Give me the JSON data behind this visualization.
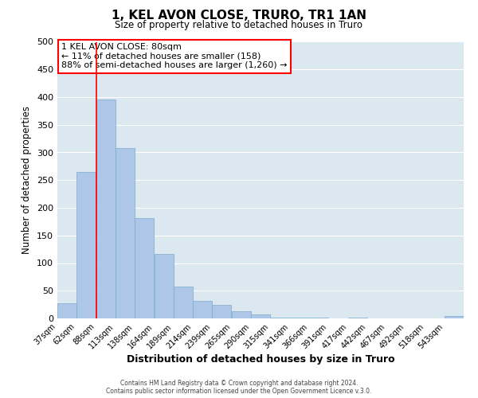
{
  "title": "1, KEL AVON CLOSE, TRURO, TR1 1AN",
  "subtitle": "Size of property relative to detached houses in Truro",
  "xlabel": "Distribution of detached houses by size in Truro",
  "ylabel": "Number of detached properties",
  "bin_labels": [
    "37sqm",
    "62sqm",
    "88sqm",
    "113sqm",
    "138sqm",
    "164sqm",
    "189sqm",
    "214sqm",
    "239sqm",
    "265sqm",
    "290sqm",
    "315sqm",
    "341sqm",
    "366sqm",
    "391sqm",
    "417sqm",
    "442sqm",
    "467sqm",
    "492sqm",
    "518sqm",
    "543sqm"
  ],
  "bin_edges": [
    37,
    62,
    88,
    113,
    138,
    164,
    189,
    214,
    239,
    265,
    290,
    315,
    341,
    366,
    391,
    417,
    442,
    467,
    492,
    518,
    543
  ],
  "bar_heights": [
    28,
    265,
    395,
    308,
    182,
    116,
    58,
    31,
    25,
    13,
    7,
    2,
    1,
    1,
    0,
    1,
    0,
    0,
    0,
    0,
    4
  ],
  "bar_color": "#aec6e8",
  "bar_edge_color": "#7aaccc",
  "bg_color": "#dce8f0",
  "grid_color": "#ffffff",
  "red_line_x": 88,
  "ylim": [
    0,
    500
  ],
  "yticks": [
    0,
    50,
    100,
    150,
    200,
    250,
    300,
    350,
    400,
    450,
    500
  ],
  "annotation_title": "1 KEL AVON CLOSE: 80sqm",
  "annotation_line1": "← 11% of detached houses are smaller (158)",
  "annotation_line2": "88% of semi-detached houses are larger (1,260) →",
  "footer_line1": "Contains HM Land Registry data © Crown copyright and database right 2024.",
  "footer_line2": "Contains public sector information licensed under the Open Government Licence v.3.0."
}
